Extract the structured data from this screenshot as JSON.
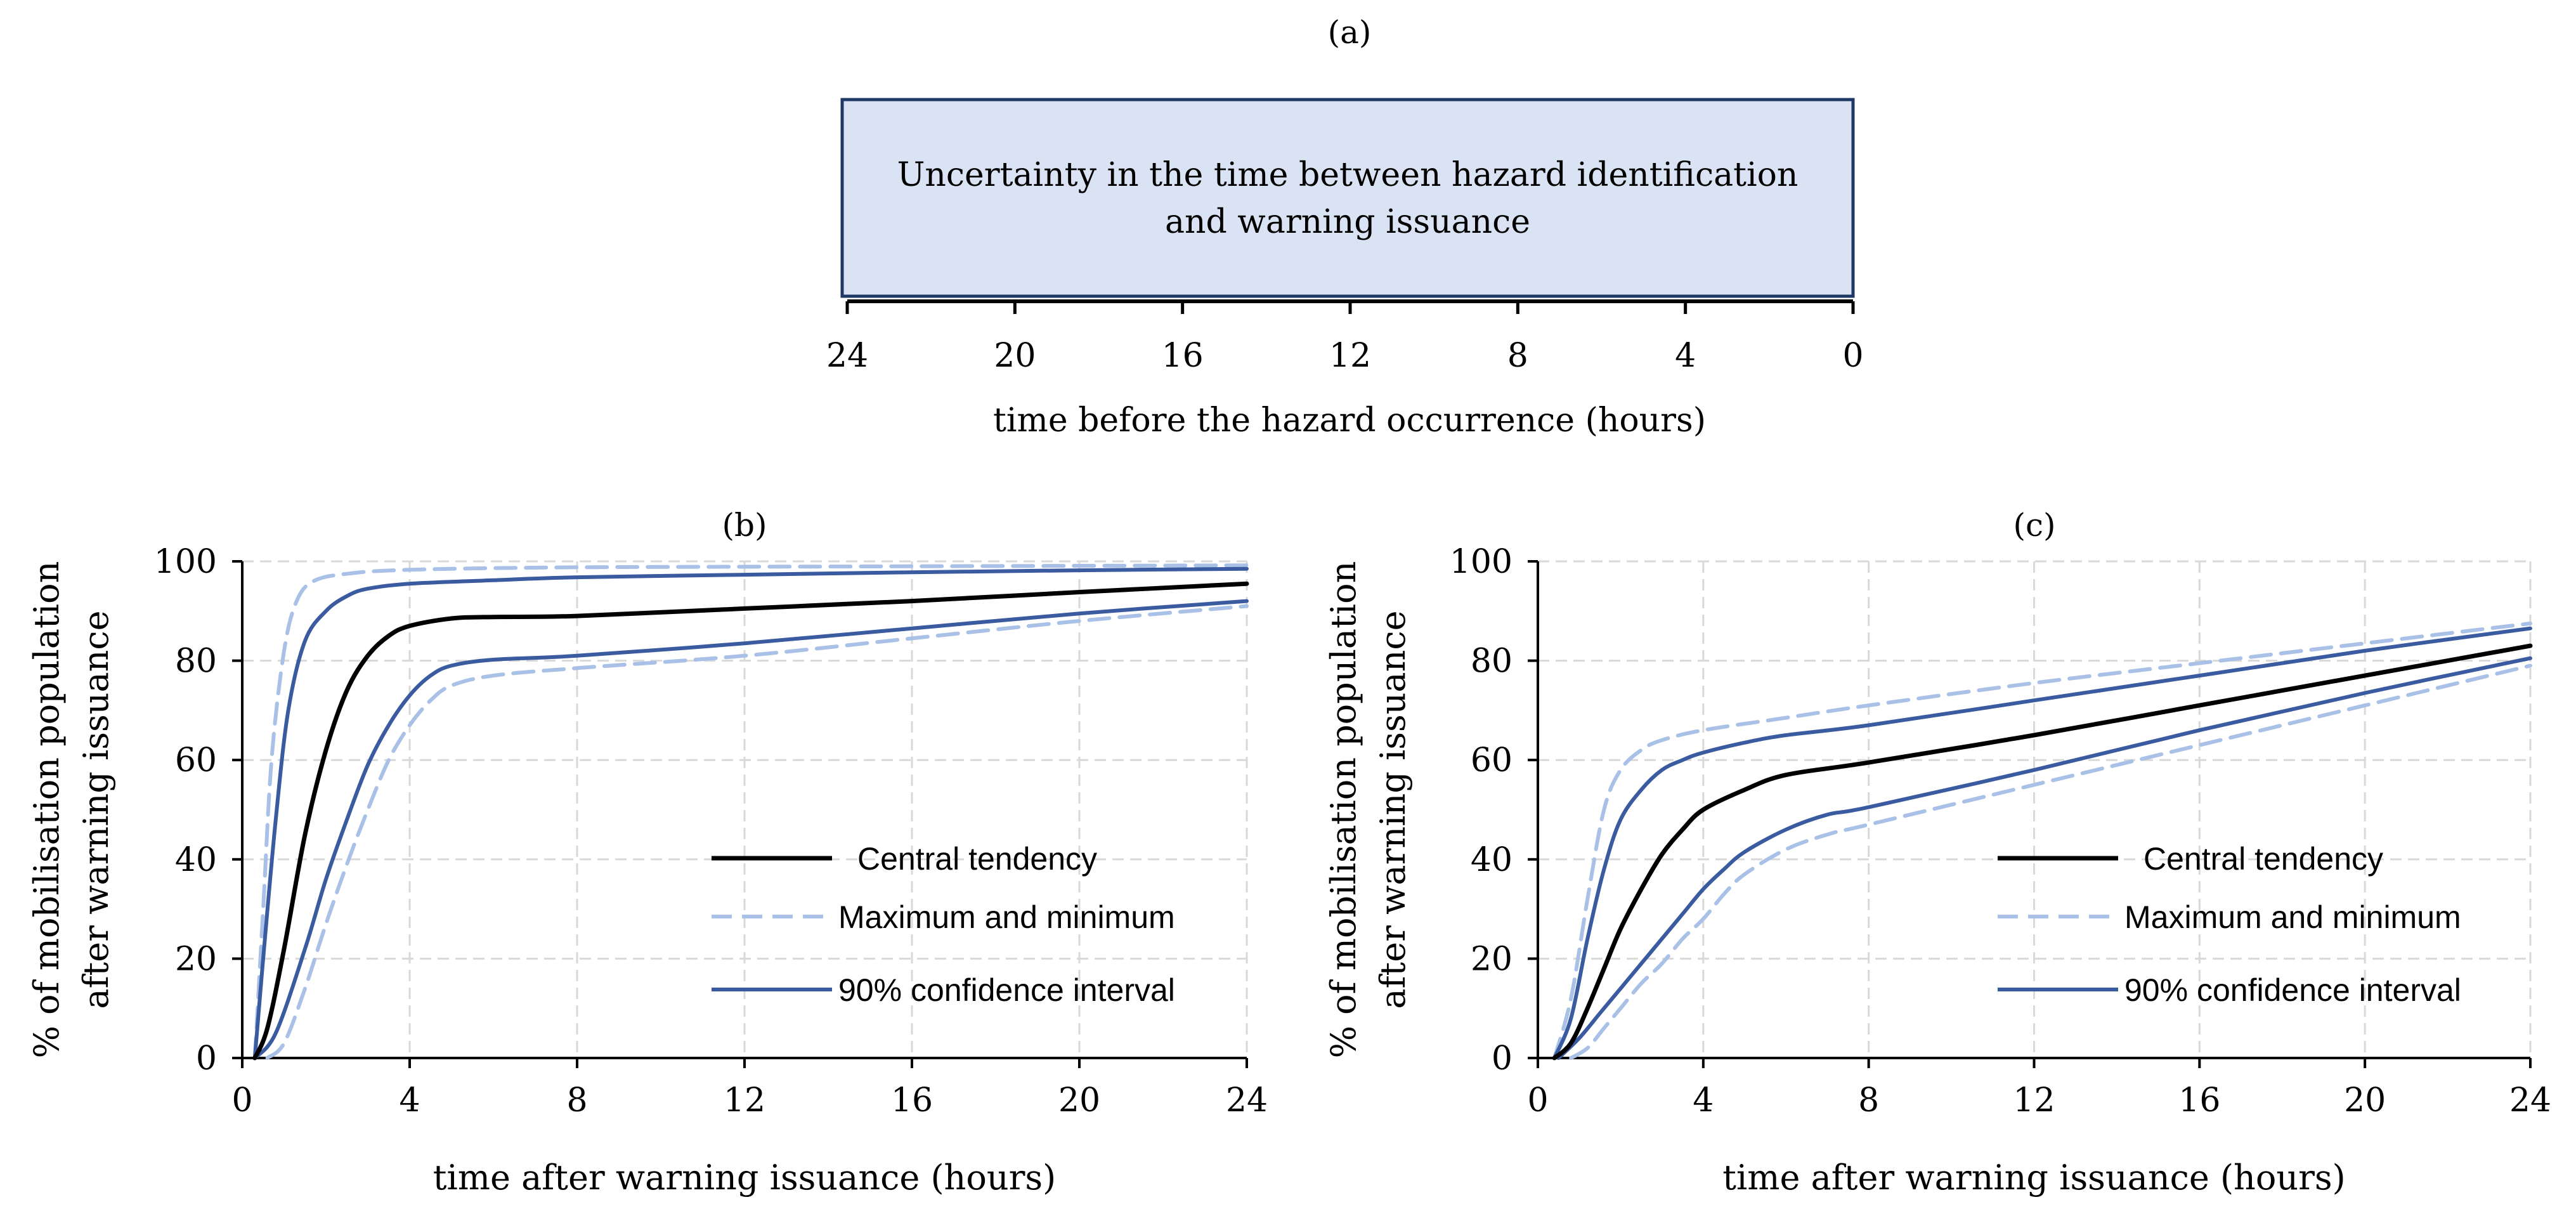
{
  "colors": {
    "central": "#000000",
    "maxmin": "#a9c1e6",
    "ci90": "#3a5ba0",
    "box_fill": "#dae3f3",
    "box_stroke": "#1f3864",
    "grid": "#d9d9d9"
  },
  "panel_a": {
    "label": "(a)",
    "box_text_line1": "Uncertainty in the time between hazard identification",
    "box_text_line2": "and warning issuance",
    "axis_label": "time before the hazard occurrence (hours)",
    "ticks": [
      "24",
      "20",
      "16",
      "12",
      "8",
      "4",
      "0"
    ]
  },
  "chart_data": [
    {
      "type": "line",
      "label": "(b)",
      "xlabel": "time after warning issuance (hours)",
      "ylabel_line1": "% of mobilisation population",
      "ylabel_line2": "after warning issuance",
      "xlim": [
        0,
        24
      ],
      "ylim": [
        0,
        100
      ],
      "xticks": [
        "0",
        "4",
        "8",
        "12",
        "16",
        "20",
        "24"
      ],
      "yticks": [
        "0",
        "20",
        "40",
        "60",
        "80",
        "100"
      ],
      "legend_position": "bottom-right",
      "grid": true,
      "series": [
        {
          "name": "Central tendency",
          "style": "central",
          "points": [
            [
              0.3,
              0
            ],
            [
              0.6,
              6
            ],
            [
              1,
              22
            ],
            [
              1.5,
              45
            ],
            [
              2,
              62
            ],
            [
              2.5,
              74
            ],
            [
              3,
              81
            ],
            [
              3.5,
              85
            ],
            [
              4,
              87
            ],
            [
              5,
              88.5
            ],
            [
              6,
              88.8
            ],
            [
              8,
              89
            ],
            [
              12,
              90.5
            ],
            [
              16,
              92
            ],
            [
              20,
              93.8
            ],
            [
              24,
              95.5
            ]
          ]
        },
        {
          "name": "Maximum and minimum",
          "style": "maxmin",
          "points": [
            [
              0.3,
              0
            ],
            [
              0.5,
              30
            ],
            [
              0.7,
              60
            ],
            [
              1,
              82
            ],
            [
              1.3,
              92
            ],
            [
              1.7,
              96
            ],
            [
              2.5,
              97.5
            ],
            [
              4,
              98.3
            ],
            [
              8,
              98.8
            ],
            [
              16,
              99
            ],
            [
              24,
              99.2
            ]
          ]
        },
        {
          "name": "Maximum and minimum",
          "style": "maxmin",
          "legend": false,
          "points": [
            [
              0.6,
              0
            ],
            [
              1,
              3
            ],
            [
              1.5,
              14
            ],
            [
              2,
              27
            ],
            [
              2.5,
              39
            ],
            [
              3,
              50
            ],
            [
              3.5,
              60
            ],
            [
              4,
              67
            ],
            [
              4.5,
              72
            ],
            [
              5,
              75
            ],
            [
              6,
              77
            ],
            [
              8,
              78.5
            ],
            [
              12,
              81
            ],
            [
              16,
              84.5
            ],
            [
              20,
              88
            ],
            [
              24,
              91
            ]
          ]
        },
        {
          "name": "90% confidence interval",
          "style": "ci90",
          "points": [
            [
              0.3,
              0
            ],
            [
              0.5,
              20
            ],
            [
              0.8,
              48
            ],
            [
              1.1,
              70
            ],
            [
              1.5,
              84
            ],
            [
              2,
              90
            ],
            [
              2.5,
              93
            ],
            [
              3,
              94.5
            ],
            [
              4,
              95.5
            ],
            [
              6,
              96.2
            ],
            [
              8,
              96.8
            ],
            [
              12,
              97.3
            ],
            [
              16,
              97.8
            ],
            [
              20,
              98.2
            ],
            [
              24,
              98.5
            ]
          ]
        },
        {
          "name": "90% confidence interval",
          "style": "ci90",
          "legend": false,
          "points": [
            [
              0.3,
              0
            ],
            [
              0.8,
              5
            ],
            [
              1.5,
              22
            ],
            [
              2,
              36
            ],
            [
              2.5,
              48
            ],
            [
              3,
              59
            ],
            [
              3.5,
              67
            ],
            [
              4,
              73
            ],
            [
              4.5,
              77
            ],
            [
              5,
              79
            ],
            [
              6,
              80.2
            ],
            [
              8,
              81
            ],
            [
              12,
              83.5
            ],
            [
              16,
              86.5
            ],
            [
              20,
              89.5
            ],
            [
              24,
              92
            ]
          ]
        }
      ]
    },
    {
      "type": "line",
      "label": "(c)",
      "xlabel": "time after warning issuance (hours)",
      "ylabel_line1": "% of mobilisation population",
      "ylabel_line2": "after warning issuance",
      "xlim": [
        0,
        24
      ],
      "ylim": [
        0,
        100
      ],
      "xticks": [
        "0",
        "4",
        "8",
        "12",
        "16",
        "20",
        "24"
      ],
      "yticks": [
        "0",
        "20",
        "40",
        "60",
        "80",
        "100"
      ],
      "legend_position": "bottom-right",
      "grid": true,
      "series": [
        {
          "name": "Central tendency",
          "style": "central",
          "points": [
            [
              0.4,
              0
            ],
            [
              0.8,
              3
            ],
            [
              1.2,
              10
            ],
            [
              1.6,
              18
            ],
            [
              2,
              26
            ],
            [
              2.5,
              34
            ],
            [
              3,
              41
            ],
            [
              3.5,
              46
            ],
            [
              4,
              50
            ],
            [
              5,
              54
            ],
            [
              6,
              57
            ],
            [
              8,
              59.5
            ],
            [
              12,
              65
            ],
            [
              16,
              71
            ],
            [
              20,
              77
            ],
            [
              24,
              83
            ]
          ]
        },
        {
          "name": "Maximum and minimum",
          "style": "maxmin",
          "points": [
            [
              0.4,
              0
            ],
            [
              0.8,
              12
            ],
            [
              1.2,
              32
            ],
            [
              1.6,
              50
            ],
            [
              2,
              58
            ],
            [
              2.5,
              62
            ],
            [
              3,
              64
            ],
            [
              4,
              66
            ],
            [
              6,
              68.5
            ],
            [
              8,
              71
            ],
            [
              12,
              75.5
            ],
            [
              16,
              79.5
            ],
            [
              20,
              83.5
            ],
            [
              24,
              87.5
            ]
          ]
        },
        {
          "name": "Maximum and minimum",
          "style": "maxmin",
          "legend": false,
          "points": [
            [
              0.8,
              0
            ],
            [
              1.2,
              2
            ],
            [
              1.6,
              6
            ],
            [
              2,
              10
            ],
            [
              2.5,
              15
            ],
            [
              3,
              19
            ],
            [
              3.5,
              24
            ],
            [
              4,
              28
            ],
            [
              4.5,
              33
            ],
            [
              5,
              37
            ],
            [
              6,
              42
            ],
            [
              7,
              45
            ],
            [
              8,
              47
            ],
            [
              12,
              55
            ],
            [
              16,
              63
            ],
            [
              20,
              71
            ],
            [
              24,
              79
            ]
          ]
        },
        {
          "name": "90% confidence interval",
          "style": "ci90",
          "points": [
            [
              0.4,
              0
            ],
            [
              0.8,
              8
            ],
            [
              1.2,
              24
            ],
            [
              1.6,
              38
            ],
            [
              2,
              48
            ],
            [
              2.5,
              54
            ],
            [
              3,
              58
            ],
            [
              3.5,
              60
            ],
            [
              4,
              61.5
            ],
            [
              5,
              63.5
            ],
            [
              6,
              65
            ],
            [
              8,
              67
            ],
            [
              12,
              72
            ],
            [
              16,
              77
            ],
            [
              20,
              82
            ],
            [
              24,
              86.5
            ]
          ]
        },
        {
          "name": "90% confidence interval",
          "style": "ci90",
          "legend": false,
          "points": [
            [
              0.5,
              0
            ],
            [
              1,
              4
            ],
            [
              1.5,
              9
            ],
            [
              2,
              14
            ],
            [
              2.5,
              19
            ],
            [
              3,
              24
            ],
            [
              3.5,
              29
            ],
            [
              4,
              34
            ],
            [
              4.5,
              38
            ],
            [
              5,
              41.5
            ],
            [
              6,
              46
            ],
            [
              7,
              49
            ],
            [
              8,
              50.5
            ],
            [
              12,
              58
            ],
            [
              16,
              66
            ],
            [
              20,
              73.5
            ],
            [
              24,
              80.5
            ]
          ]
        }
      ]
    }
  ]
}
